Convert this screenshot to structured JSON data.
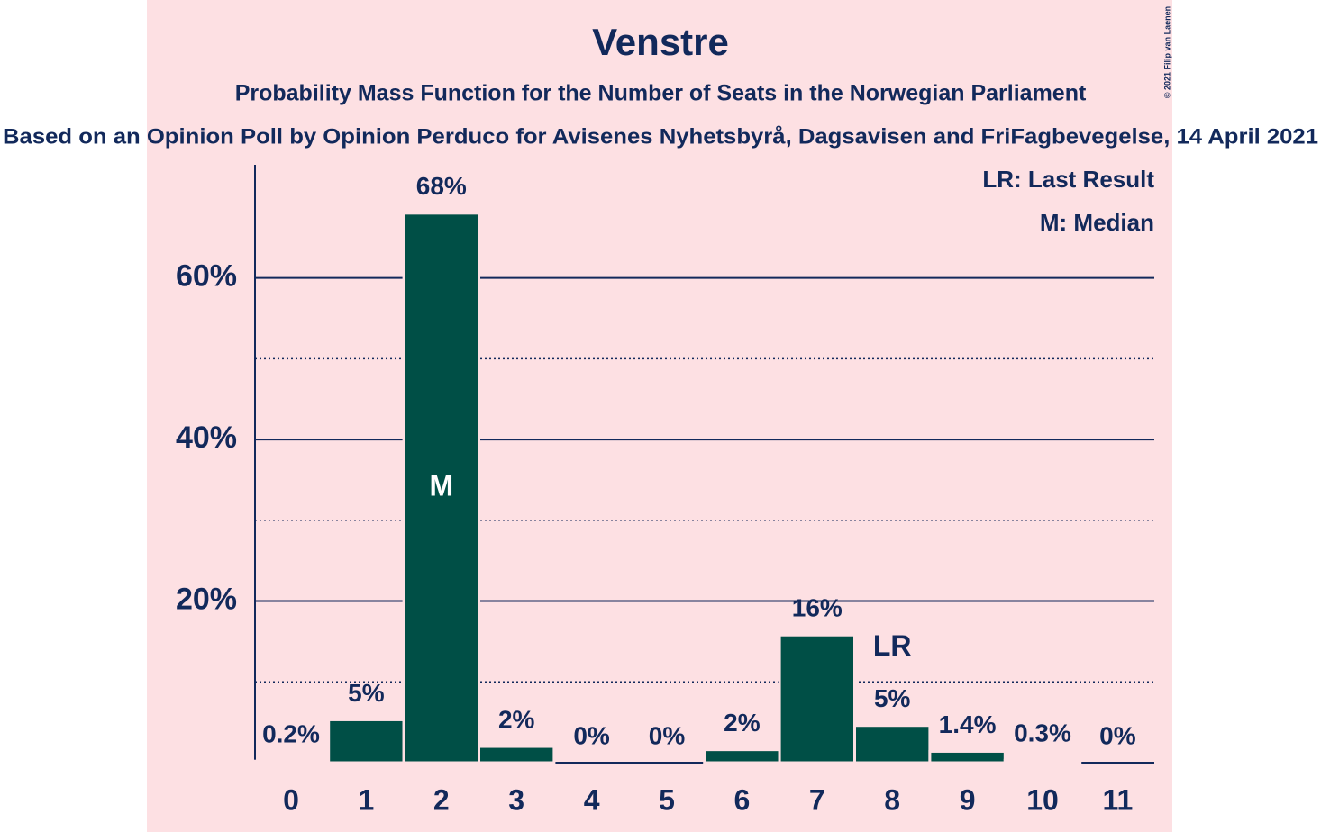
{
  "chart_data": {
    "type": "bar",
    "title": "Venstre",
    "subtitle": "Probability Mass Function for the Number of Seats in the Norwegian Parliament",
    "subtitle2": "Based on an Opinion Poll by Opinion Perduco for Avisenes Nyhetsbyrå, Dagsavisen and FriFagbevegelse, 14 April 2021",
    "copyright": "© 2021 Filip van Laenen",
    "categories": [
      "0",
      "1",
      "2",
      "3",
      "4",
      "5",
      "6",
      "7",
      "8",
      "9",
      "10",
      "11"
    ],
    "values": [
      0.2,
      5.3,
      68,
      2.0,
      0,
      0,
      1.6,
      15.8,
      4.6,
      1.4,
      0.3,
      0
    ],
    "value_labels": [
      "0.2%",
      "5%",
      "68%",
      "2%",
      "0%",
      "0%",
      "2%",
      "16%",
      "5%",
      "1.4%",
      "0.3%",
      "0%"
    ],
    "color": "#004f46",
    "ylim": [
      0,
      74
    ],
    "yticks": [
      {
        "value": 20,
        "label": "20%"
      },
      {
        "value": 40,
        "label": "40%"
      },
      {
        "value": 60,
        "label": "60%"
      }
    ],
    "minor_yticks": [
      10,
      30,
      50
    ],
    "grid": true,
    "markers": [
      {
        "index": 2,
        "label": "M"
      },
      {
        "index": 8,
        "label": "LR"
      }
    ],
    "legend_notes": [
      "LR: Last Result",
      "M: Median"
    ]
  }
}
